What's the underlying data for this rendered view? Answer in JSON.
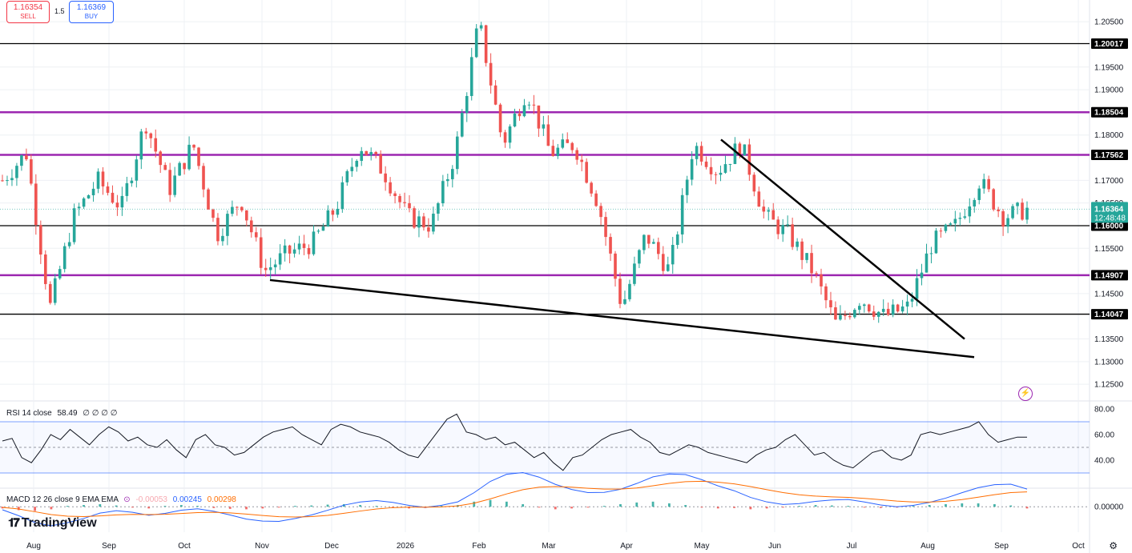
{
  "trade": {
    "sell_price": "1.16354",
    "sell_label": "SELL",
    "spread": "1.5",
    "buy_price": "1.16369",
    "buy_label": "BUY"
  },
  "branding": {
    "logo_text": "TradingView"
  },
  "colors": {
    "up": "#26a69a",
    "down": "#ef5350",
    "purple_level": "#9c27b0",
    "black_level": "#000000",
    "rsi_line": "#131722",
    "rsi_band": "#2962ff",
    "macd_line": "#2962ff",
    "signal_line": "#ff6d00"
  },
  "chart_data": [
    {
      "type": "candlestick",
      "symbol_hint": "EURUSD-like price",
      "x_ticks": [
        "Aug",
        "Sep",
        "Oct",
        "Nov",
        "Dec",
        "2026",
        "Feb",
        "Mar",
        "Apr",
        "May",
        "Jun",
        "Jul",
        "Aug",
        "Sep",
        "Oct"
      ],
      "y_ticks": [
        "1.20500",
        "1.19500",
        "1.19000",
        "1.18000",
        "1.17000",
        "1.16500",
        "1.15500",
        "1.14500",
        "1.13500",
        "1.13000",
        "1.12500"
      ],
      "ylim": [
        1.1215,
        1.2098
      ],
      "last_price": "1.16364",
      "countdown": "12:48:48",
      "horizontal_levels": [
        {
          "price": 1.20017,
          "label": "1.20017",
          "color": "black"
        },
        {
          "price": 1.18504,
          "label": "1.18504",
          "color": "purple"
        },
        {
          "price": 1.17562,
          "label": "1.17562",
          "color": "purple"
        },
        {
          "price": 1.16,
          "label": "1.16000",
          "color": "black"
        },
        {
          "price": 1.14907,
          "label": "1.14907",
          "color": "purple"
        },
        {
          "price": 1.14047,
          "label": "1.14047",
          "color": "black"
        }
      ],
      "trendlines": [
        {
          "from": [
            "Nov",
            1.148
          ],
          "to": [
            "Sep",
            1.131
          ]
        },
        {
          "from": [
            "May",
            1.179
          ],
          "to": [
            "Sep",
            1.135
          ]
        }
      ],
      "price_path": [
        [
          "Jul",
          1.17
        ],
        [
          "Aug",
          1.176
        ],
        [
          "Aug",
          1.142
        ],
        [
          "Aug",
          1.162
        ],
        [
          "Sep",
          1.17
        ],
        [
          "Sep",
          1.164
        ],
        [
          "Sep",
          1.183
        ],
        [
          "Oct",
          1.168
        ],
        [
          "Oct",
          1.178
        ],
        [
          "Oct",
          1.158
        ],
        [
          "Nov",
          1.166
        ],
        [
          "Nov",
          1.15
        ],
        [
          "Nov",
          1.154
        ],
        [
          "Dec",
          1.156
        ],
        [
          "Dec",
          1.164
        ],
        [
          "Dec",
          1.178
        ],
        [
          "2026",
          1.172
        ],
        [
          "2026",
          1.162
        ],
        [
          "2026",
          1.16
        ],
        [
          "Feb",
          1.176
        ],
        [
          "Feb",
          1.205
        ],
        [
          "Feb",
          1.178
        ],
        [
          "Feb",
          1.19
        ],
        [
          "Feb",
          1.176
        ],
        [
          "Mar",
          1.178
        ],
        [
          "Mar",
          1.165
        ],
        [
          "Mar",
          1.142
        ],
        [
          "Apr",
          1.158
        ],
        [
          "Apr",
          1.15
        ],
        [
          "Apr",
          1.178
        ],
        [
          "May",
          1.172
        ],
        [
          "May",
          1.178
        ],
        [
          "Jun",
          1.162
        ],
        [
          "Jun",
          1.158
        ],
        [
          "Jun",
          1.15
        ],
        [
          "Jul",
          1.138
        ],
        [
          "Jul",
          1.144
        ],
        [
          "Jul",
          1.14
        ],
        [
          "Aug",
          1.142
        ],
        [
          "Aug",
          1.156
        ],
        [
          "Aug",
          1.16
        ],
        [
          "Sep",
          1.17
        ],
        [
          "Sep",
          1.162
        ],
        [
          "Sep",
          1.1636
        ]
      ]
    },
    {
      "type": "line",
      "name": "RSI 14 close",
      "label": "RSI 14 close",
      "value": "58.49",
      "extra": "∅ ∅ ∅ ∅",
      "y_ticks": [
        "80.00",
        "60.00",
        "40.00"
      ],
      "ylim": [
        20,
        85
      ],
      "bands": [
        70,
        50,
        30
      ],
      "values": [
        55,
        57,
        42,
        38,
        48,
        60,
        56,
        64,
        58,
        52,
        60,
        66,
        62,
        55,
        58,
        52,
        50,
        56,
        48,
        42,
        56,
        60,
        52,
        50,
        44,
        46,
        52,
        58,
        62,
        64,
        66,
        60,
        56,
        52,
        64,
        68,
        66,
        62,
        60,
        58,
        54,
        48,
        44,
        42,
        52,
        62,
        72,
        76,
        62,
        60,
        56,
        58,
        52,
        54,
        48,
        42,
        46,
        38,
        32,
        42,
        44,
        50,
        56,
        60,
        62,
        64,
        58,
        54,
        46,
        44,
        48,
        52,
        50,
        46,
        44,
        42,
        40,
        38,
        44,
        48,
        50,
        56,
        60,
        52,
        44,
        46,
        40,
        36,
        34,
        40,
        46,
        48,
        42,
        40,
        44,
        60,
        62,
        60,
        62,
        64,
        66,
        70,
        60,
        54,
        56,
        58,
        58
      ]
    },
    {
      "type": "bar+line",
      "name": "MACD 12 26 close 9 EMA EMA",
      "label": "MACD 12 26 close 9 EMA EMA",
      "values_text": [
        "-0.00053",
        "0.00245",
        "0.00298"
      ],
      "y_ticks": [
        "0.00000"
      ],
      "ylim": [
        -0.006,
        0.004
      ],
      "histogram": [
        -0.0004,
        -0.0008,
        -0.001,
        -0.0006,
        0.0002,
        0.0004,
        0.0006,
        0.0003,
        -0.0002,
        -0.0004,
        0.0002,
        0.0004,
        0.0002,
        -0.0003,
        -0.0005,
        -0.0006,
        -0.0004,
        -0.0002,
        0.0002,
        0.0003,
        0.0005,
        0.0006,
        0.0004,
        0.0002,
        -0.0002,
        -0.0004,
        -0.0003,
        0.0002,
        0.0004,
        0.0012,
        0.0016,
        0.0012,
        0.0006,
        -0.0002,
        -0.0006,
        -0.0004,
        -0.0002,
        0.0002,
        0.0006,
        0.001,
        0.0012,
        0.0008,
        0.0004,
        -0.0002,
        -0.0004,
        -0.0003,
        -0.0006,
        -0.0004,
        -0.0002,
        0.0002,
        0.0004,
        0.0003,
        0.0002,
        -0.0002,
        -0.0003,
        -0.0002,
        0.0002,
        0.0004,
        0.0006,
        0.0008,
        0.0008,
        0.0006,
        0.0003,
        -0.0004
      ]
    }
  ]
}
